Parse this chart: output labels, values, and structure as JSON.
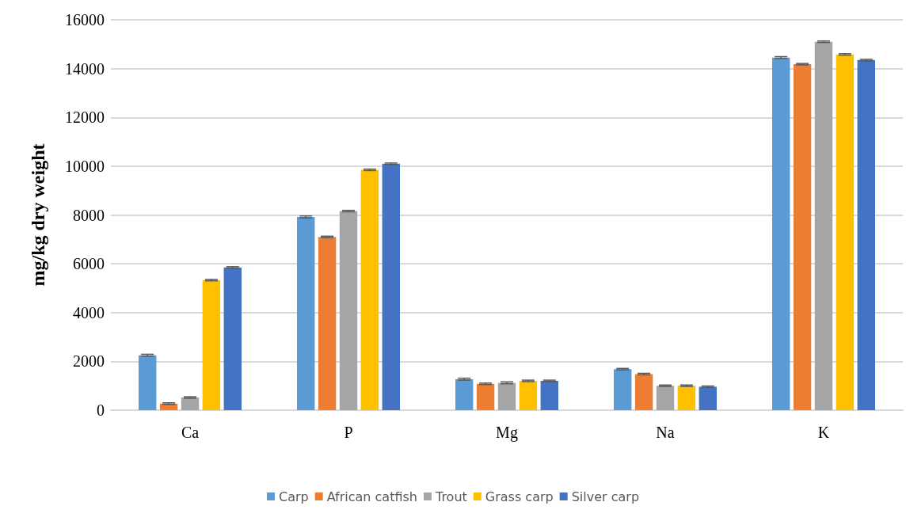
{
  "chart_data": {
    "type": "bar",
    "ylabel": "mg/kg dry weight",
    "categories": [
      "Ca",
      "P",
      "Mg",
      "Na",
      "K"
    ],
    "series": [
      {
        "name": "Carp",
        "color": "#5b9bd5",
        "values": [
          2250,
          7920,
          1270,
          1680,
          14450
        ],
        "errors": [
          40,
          40,
          40,
          30,
          40
        ]
      },
      {
        "name": "African catfish",
        "color": "#ed7d31",
        "values": [
          270,
          7100,
          1080,
          1480,
          14180
        ],
        "errors": [
          30,
          30,
          30,
          30,
          30
        ]
      },
      {
        "name": "Trout",
        "color": "#a5a5a5",
        "values": [
          520,
          8160,
          1120,
          1000,
          15100
        ],
        "errors": [
          30,
          30,
          40,
          30,
          30
        ]
      },
      {
        "name": "Grass carp",
        "color": "#ffc000",
        "values": [
          5330,
          9850,
          1200,
          1000,
          14580
        ],
        "errors": [
          30,
          30,
          30,
          30,
          30
        ]
      },
      {
        "name": "Silver carp",
        "color": "#4472c4",
        "values": [
          5850,
          10100,
          1200,
          960,
          14350
        ],
        "errors": [
          30,
          30,
          30,
          30,
          30
        ]
      }
    ],
    "ylim": [
      0,
      16000
    ],
    "yticks": [
      0,
      2000,
      4000,
      6000,
      8000,
      10000,
      12000,
      14000,
      16000
    ],
    "grid": "y",
    "legend": "bottom"
  }
}
